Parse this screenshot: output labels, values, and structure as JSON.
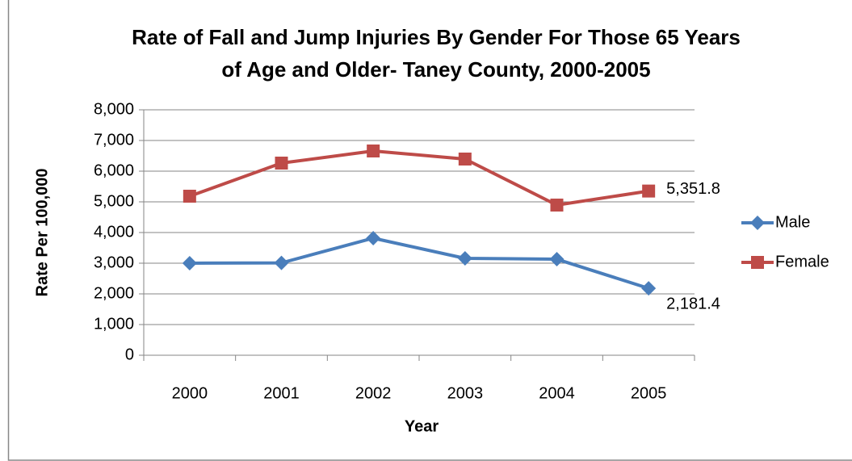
{
  "chart_data": {
    "type": "line",
    "title": [
      "Rate of Fall and Jump Injuries By Gender For Those 65 Years",
      "of Age and Older- Taney County, 2000-2005"
    ],
    "x_label": "Year",
    "y_label": "Rate Per 100,000",
    "categories": [
      "2000",
      "2001",
      "2002",
      "2003",
      "2004",
      "2005"
    ],
    "series": [
      {
        "name": "Male",
        "color": "#4a7ebb",
        "marker": "diamond",
        "values": [
          3000,
          3010,
          3816,
          3158,
          3130,
          2181.4
        ],
        "value_labels": [
          null,
          null,
          null,
          null,
          null,
          "2,181.4"
        ]
      },
      {
        "name": "Female",
        "color": "#be4b48",
        "marker": "square",
        "values": [
          5184,
          6263,
          6658,
          6395,
          4895,
          5351.8
        ],
        "value_labels": [
          null,
          null,
          null,
          null,
          null,
          "5,351.8"
        ]
      }
    ],
    "ylim": [
      0,
      8000
    ],
    "yticks": [
      0,
      {
        "value": 1000,
        "label": "1,000"
      },
      {
        "value": 2000,
        "label": "2,000"
      },
      {
        "value": 3000,
        "label": "3,000"
      },
      {
        "value": 4000,
        "label": "4,000"
      },
      {
        "value": 5000,
        "label": "5,000"
      },
      {
        "value": 6000,
        "label": "6,000"
      },
      {
        "value": 7000,
        "label": "7,000"
      },
      {
        "value": 8000,
        "label": "8,000"
      }
    ],
    "grid": true,
    "legend": "right"
  }
}
